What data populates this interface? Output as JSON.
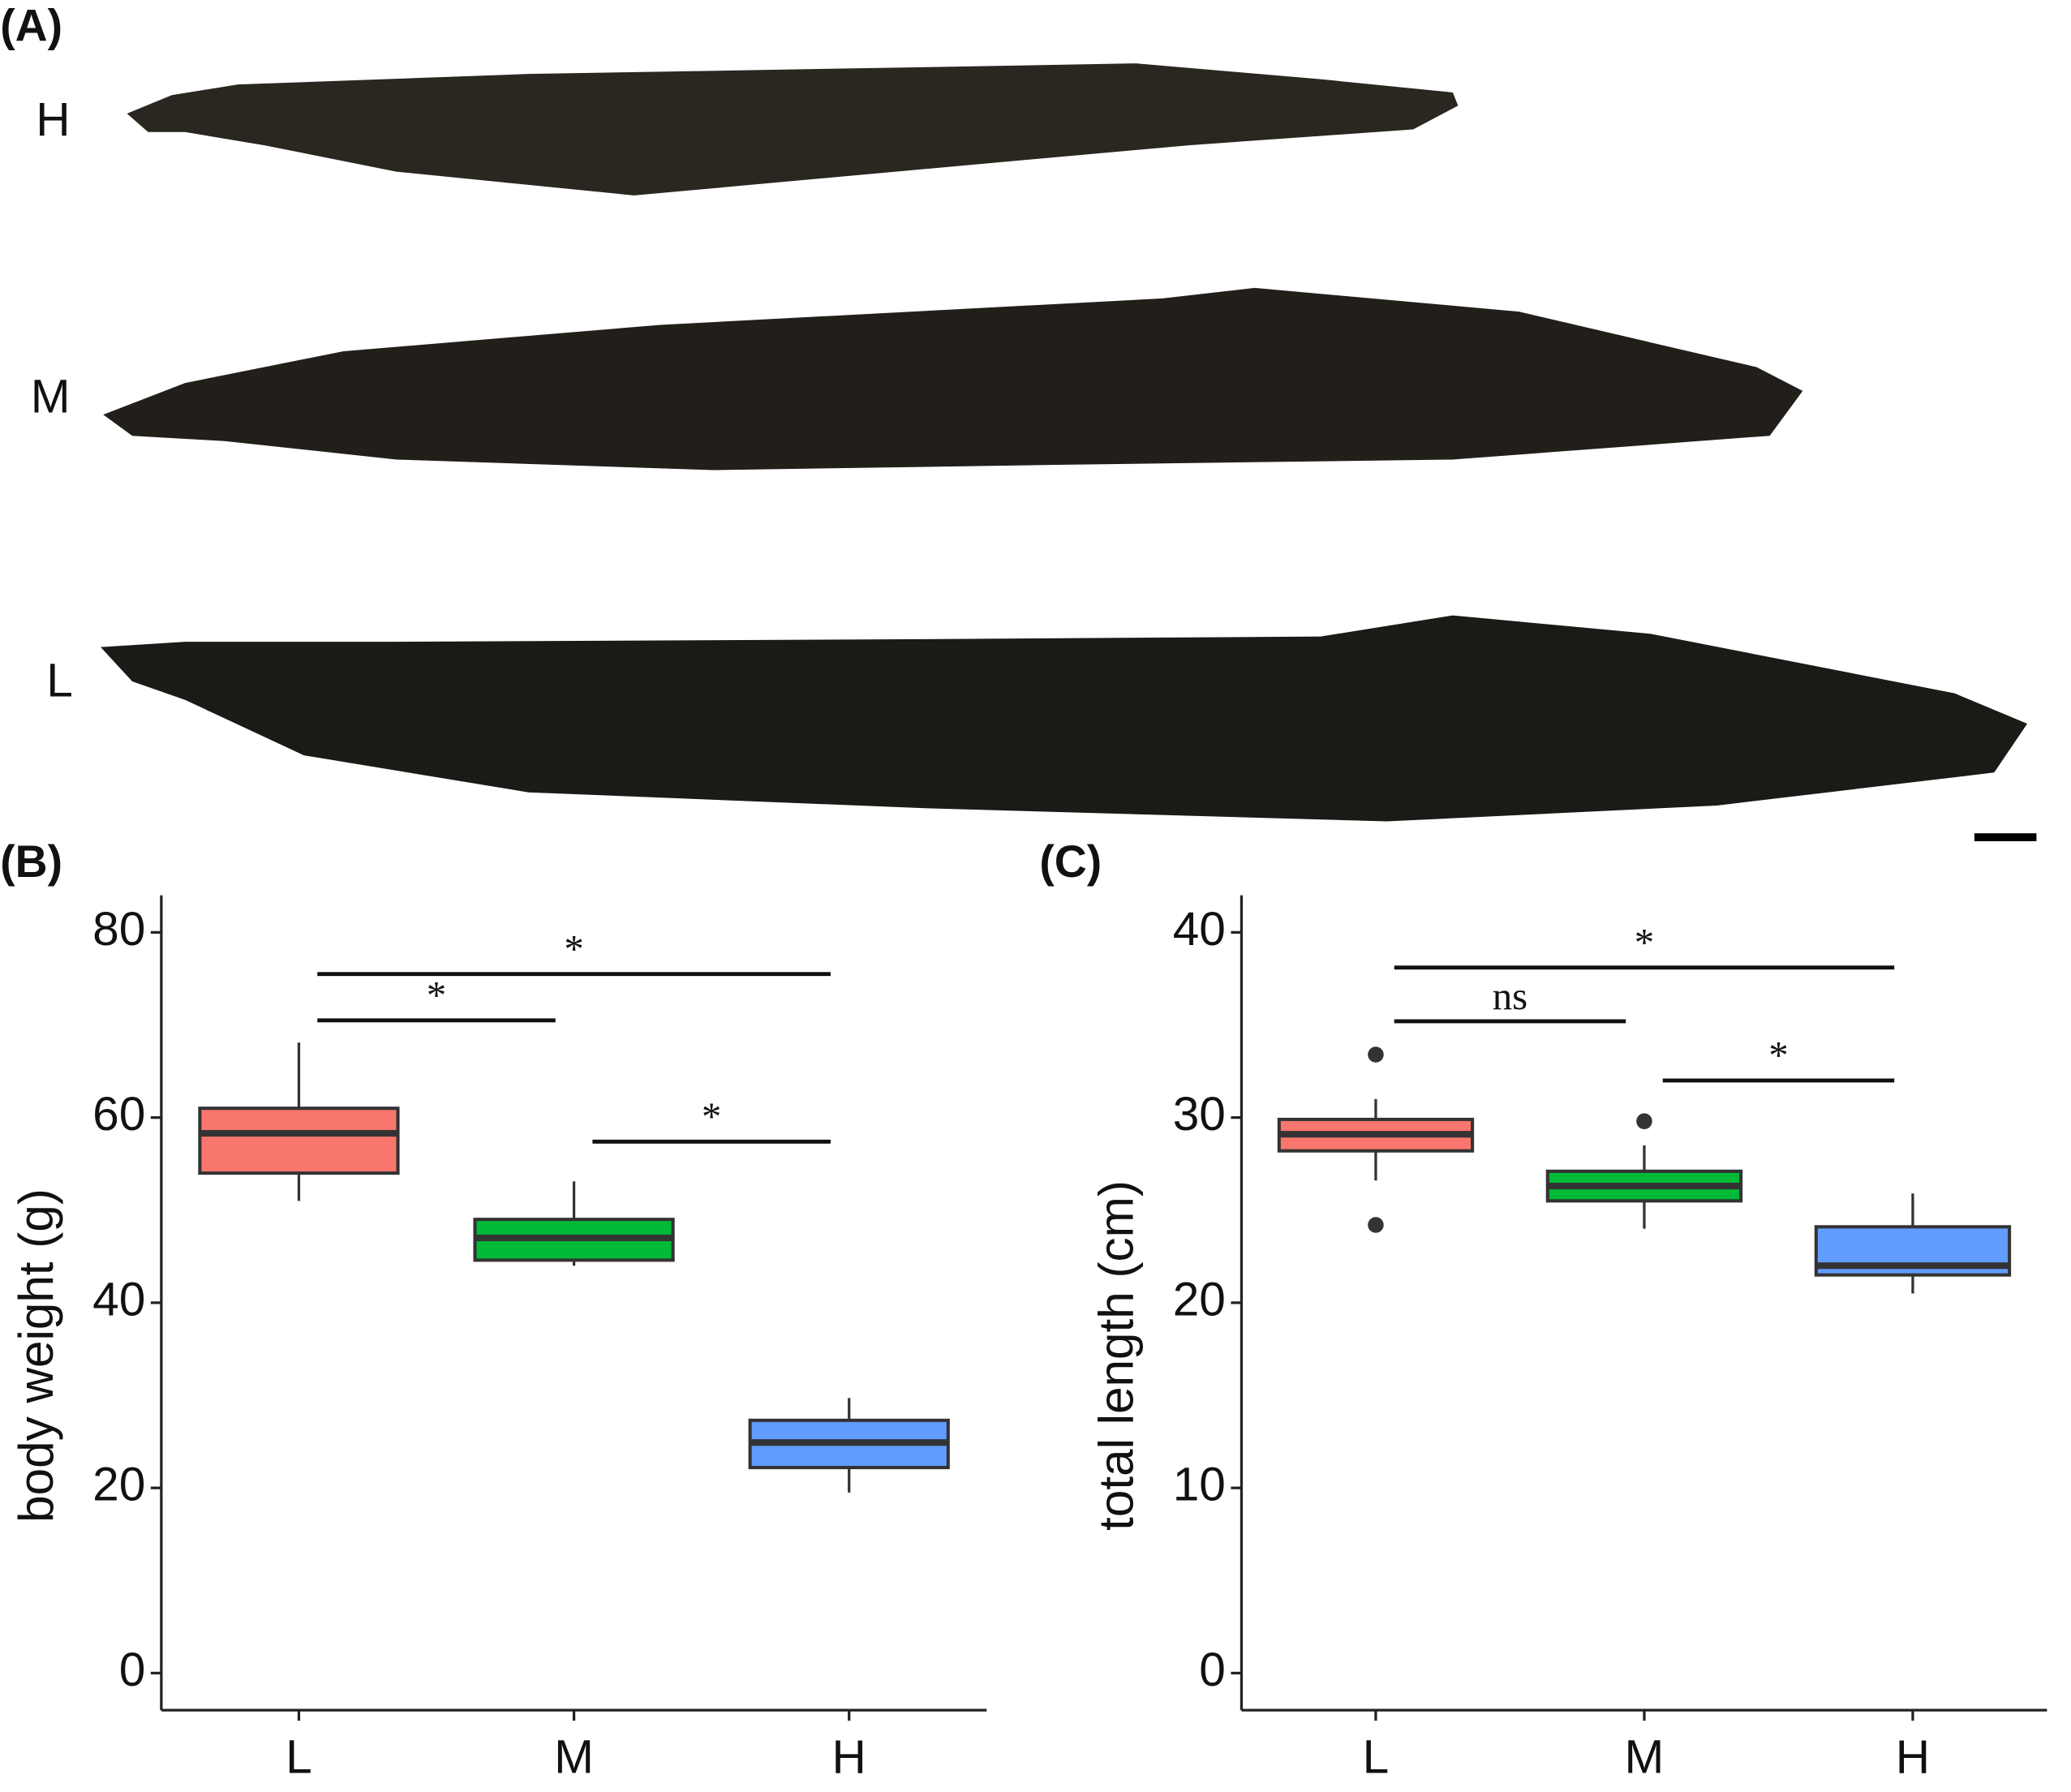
{
  "panel_labels": [
    "(A)",
    "(B)",
    "(C)"
  ],
  "photo_labels": [
    "H",
    "M",
    "L"
  ],
  "chart_data": [
    {
      "type": "box",
      "ylabel": "body weight (g)",
      "categories": [
        "L",
        "M",
        "H"
      ],
      "colors": [
        "#f8766d",
        "#00ba38",
        "#619cff"
      ],
      "boxes": [
        {
          "min": 51.0,
          "q1": 54.0,
          "median": 58.3,
          "q3": 61.0,
          "max": 68.1,
          "outliers": []
        },
        {
          "min": 44.0,
          "q1": 44.6,
          "median": 47.0,
          "q3": 49.0,
          "max": 53.1,
          "outliers": []
        },
        {
          "min": 19.5,
          "q1": 22.2,
          "median": 24.9,
          "q3": 27.3,
          "max": 29.7,
          "outliers": []
        }
      ],
      "ylim": [
        -4,
        84
      ],
      "yticks": [
        0,
        20,
        40,
        60,
        80
      ],
      "comparisons": [
        {
          "groups": [
            "L",
            "H"
          ],
          "label": "*",
          "y": 75.5
        },
        {
          "groups": [
            "L",
            "M"
          ],
          "label": "*",
          "y": 70.5
        },
        {
          "groups": [
            "M",
            "H"
          ],
          "label": "*",
          "y": 57.4
        }
      ]
    },
    {
      "type": "box",
      "ylabel": "total length (cm)",
      "categories": [
        "L",
        "M",
        "H"
      ],
      "colors": [
        "#f8766d",
        "#00ba38",
        "#619cff"
      ],
      "boxes": [
        {
          "min": 26.6,
          "q1": 28.2,
          "median": 29.1,
          "q3": 29.9,
          "max": 31.0,
          "outliers": [
            33.4,
            24.2
          ]
        },
        {
          "min": 24.0,
          "q1": 25.5,
          "median": 26.3,
          "q3": 27.1,
          "max": 28.5,
          "outliers": [
            29.8
          ]
        },
        {
          "min": 20.5,
          "q1": 21.5,
          "median": 22.0,
          "q3": 24.1,
          "max": 25.9,
          "outliers": []
        }
      ],
      "ylim": [
        -2,
        42
      ],
      "yticks": [
        0,
        10,
        20,
        30,
        40
      ],
      "comparisons": [
        {
          "groups": [
            "L",
            "H"
          ],
          "label": "*",
          "y": 38.1
        },
        {
          "groups": [
            "L",
            "M"
          ],
          "label": "ns",
          "y": 35.2
        },
        {
          "groups": [
            "M",
            "H"
          ],
          "label": "*",
          "y": 32.0
        }
      ]
    }
  ]
}
